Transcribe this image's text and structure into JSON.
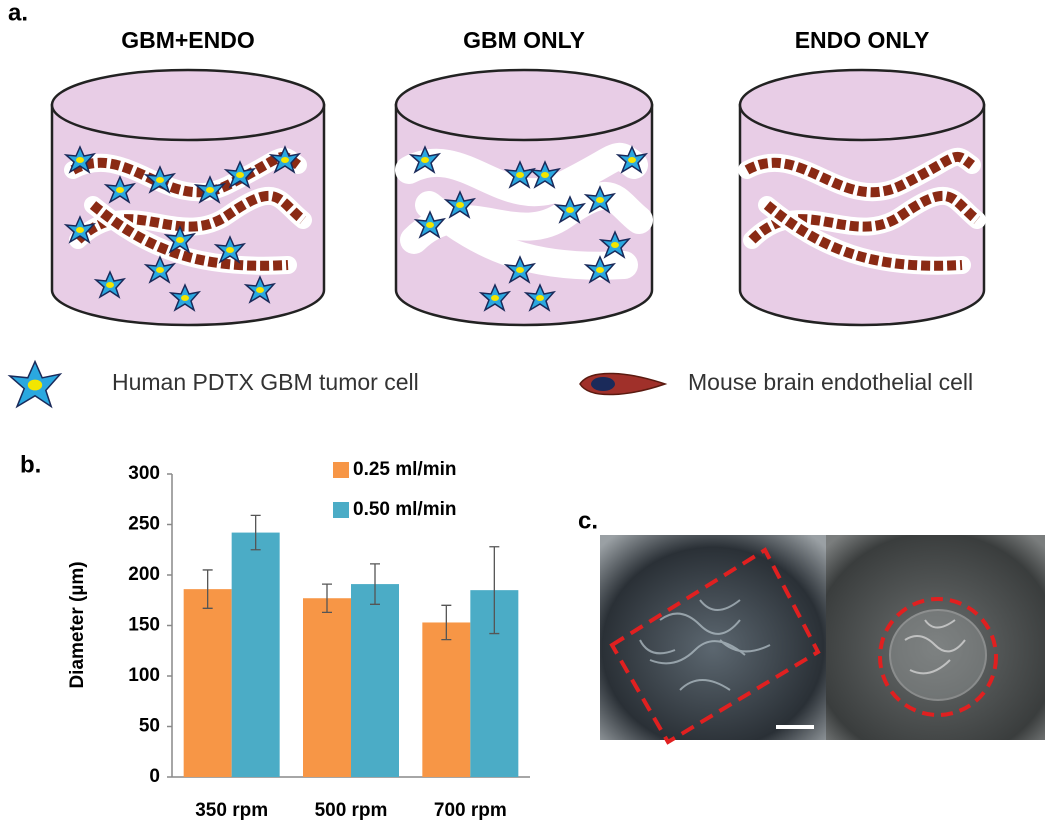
{
  "panel_labels": {
    "a": "a.",
    "b": "b.",
    "c": "c."
  },
  "diagram": {
    "titles": [
      "GBM+ENDO",
      "GBM ONLY",
      "ENDO ONLY"
    ],
    "legend": [
      "Human PDTX GBM tumor cell",
      "Mouse brain endothelial cell"
    ]
  },
  "chart_data": {
    "type": "bar",
    "y_label": "Diameter (µm)",
    "categories": [
      "350 rpm",
      "500 rpm",
      "700 rpm"
    ],
    "series": [
      {
        "name": "0.25 ml/min",
        "color": "#f79646",
        "values": [
          186,
          177,
          153
        ],
        "errors": [
          19,
          14,
          17
        ]
      },
      {
        "name": "0.50 ml/min",
        "color": "#4bacc6",
        "values": [
          242,
          191,
          185
        ],
        "errors": [
          17,
          20,
          43
        ]
      }
    ],
    "ylim": [
      0,
      300
    ],
    "yticks": [
      0,
      50,
      100,
      150,
      200,
      250,
      300
    ],
    "grid": false,
    "legend": "top-right"
  }
}
